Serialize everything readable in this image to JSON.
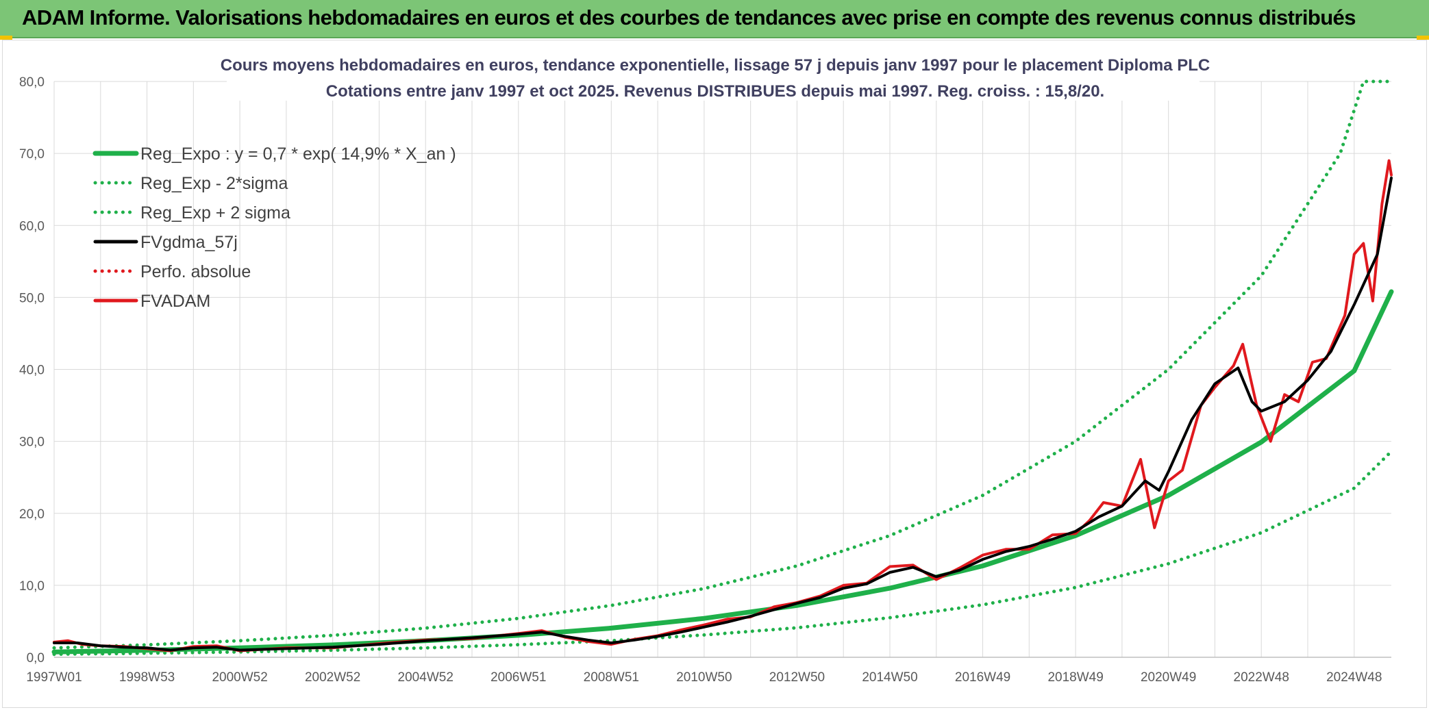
{
  "banner": {
    "title": "ADAM Informe. Valorisations hebdomadaires en euros et des courbes de tendances avec prise en compte des revenus connus distribués"
  },
  "chart_data": {
    "type": "line",
    "title": "Cours moyens hebdomadaires en euros, tendance exponentielle, lissage 57 j depuis janv 1997 pour le placement Diploma PLC",
    "subtitle": "Cotations entre janv 1997 et oct 2025. Revenus DISTRIBUES depuis mai 1997. Reg. croiss. : 15,8/20.",
    "xlabel": "",
    "ylabel": "",
    "ylim": [
      0,
      80
    ],
    "yticks": [
      "0,0",
      "10,0",
      "20,0",
      "30,0",
      "40,0",
      "50,0",
      "60,0",
      "70,0",
      "80,0"
    ],
    "xlim_years": [
      1997.0,
      2025.8
    ],
    "xticks": [
      {
        "label": "1997W01",
        "year": 1997.0
      },
      {
        "label": "1998W53",
        "year": 1999.0
      },
      {
        "label": "2000W52",
        "year": 2001.0
      },
      {
        "label": "2002W52",
        "year": 2003.0
      },
      {
        "label": "2004W52",
        "year": 2005.0
      },
      {
        "label": "2006W51",
        "year": 2007.0
      },
      {
        "label": "2008W51",
        "year": 2009.0
      },
      {
        "label": "2010W50",
        "year": 2011.0
      },
      {
        "label": "2012W50",
        "year": 2013.0
      },
      {
        "label": "2014W50",
        "year": 2015.0
      },
      {
        "label": "2016W49",
        "year": 2017.0
      },
      {
        "label": "2018W49",
        "year": 2019.0
      },
      {
        "label": "2020W49",
        "year": 2021.0
      },
      {
        "label": "2022W48",
        "year": 2023.0
      },
      {
        "label": "2024W48",
        "year": 2025.0
      }
    ],
    "grid": true,
    "legend_position": "top-left",
    "series": [
      {
        "name": "Reg_Expo : y = 0,7 * exp( 14,9% *  X_an )",
        "color": "#1fb04a",
        "style": "solid",
        "points": [
          [
            1997,
            0.74
          ],
          [
            1999,
            0.98
          ],
          [
            2001,
            1.3
          ],
          [
            2003,
            1.72
          ],
          [
            2005,
            2.3
          ],
          [
            2007,
            3.05
          ],
          [
            2009,
            4.05
          ],
          [
            2011,
            5.4
          ],
          [
            2013,
            7.2
          ],
          [
            2015,
            9.6
          ],
          [
            2017,
            12.7
          ],
          [
            2019,
            16.9
          ],
          [
            2021,
            22.5
          ],
          [
            2023,
            29.9
          ],
          [
            2025,
            39.8
          ],
          [
            2025.8,
            50.8
          ]
        ]
      },
      {
        "name": "Reg_Exp - 2*sigma",
        "color": "#1fb04a",
        "style": "dotted",
        "points": [
          [
            1997,
            0.42
          ],
          [
            1999,
            0.56
          ],
          [
            2001,
            0.74
          ],
          [
            2003,
            0.98
          ],
          [
            2005,
            1.3
          ],
          [
            2007,
            1.75
          ],
          [
            2009,
            2.3
          ],
          [
            2011,
            3.1
          ],
          [
            2013,
            4.1
          ],
          [
            2015,
            5.5
          ],
          [
            2017,
            7.3
          ],
          [
            2019,
            9.7
          ],
          [
            2021,
            13.0
          ],
          [
            2023,
            17.3
          ],
          [
            2025,
            23.5
          ],
          [
            2025.8,
            28.6
          ]
        ]
      },
      {
        "name": "Reg_Exp + 2 sigma",
        "color": "#1fb04a",
        "style": "dotted",
        "points": [
          [
            1997,
            1.3
          ],
          [
            1999,
            1.73
          ],
          [
            2001,
            2.3
          ],
          [
            2003,
            3.05
          ],
          [
            2005,
            4.05
          ],
          [
            2007,
            5.4
          ],
          [
            2009,
            7.2
          ],
          [
            2011,
            9.55
          ],
          [
            2013,
            12.7
          ],
          [
            2015,
            16.9
          ],
          [
            2017,
            22.5
          ],
          [
            2019,
            30.0
          ],
          [
            2021,
            40.0
          ],
          [
            2023,
            53.0
          ],
          [
            2024.7,
            70.0
          ],
          [
            2025.2,
            80.0
          ],
          [
            2025.8,
            80.0
          ]
        ]
      },
      {
        "name": "FVgdma_57j",
        "color": "#000000",
        "style": "solid",
        "points": [
          [
            1997,
            2.0
          ],
          [
            1997.5,
            2.0
          ],
          [
            1998,
            1.6
          ],
          [
            1998.5,
            1.4
          ],
          [
            1999,
            1.3
          ],
          [
            1999.5,
            1.0
          ],
          [
            2000,
            1.3
          ],
          [
            2000.5,
            1.4
          ],
          [
            2001,
            1.0
          ],
          [
            2002,
            1.2
          ],
          [
            2003,
            1.4
          ],
          [
            2004,
            1.8
          ],
          [
            2005,
            2.3
          ],
          [
            2006,
            2.7
          ],
          [
            2007,
            3.2
          ],
          [
            2007.5,
            3.5
          ],
          [
            2008,
            2.9
          ],
          [
            2008.5,
            2.4
          ],
          [
            2009,
            2.0
          ],
          [
            2009.5,
            2.4
          ],
          [
            2010,
            2.9
          ],
          [
            2010.5,
            3.5
          ],
          [
            2011,
            4.2
          ],
          [
            2011.5,
            4.9
          ],
          [
            2012,
            5.7
          ],
          [
            2012.5,
            6.6
          ],
          [
            2013,
            7.5
          ],
          [
            2013.5,
            8.3
          ],
          [
            2014,
            9.6
          ],
          [
            2014.5,
            10.2
          ],
          [
            2015,
            11.8
          ],
          [
            2015.5,
            12.5
          ],
          [
            2016,
            11.2
          ],
          [
            2016.5,
            12.1
          ],
          [
            2017,
            13.6
          ],
          [
            2017.5,
            14.7
          ],
          [
            2018,
            15.4
          ],
          [
            2018.5,
            16.4
          ],
          [
            2019,
            17.5
          ],
          [
            2019.5,
            19.5
          ],
          [
            2020,
            21.0
          ],
          [
            2020.5,
            24.5
          ],
          [
            2020.8,
            23.2
          ],
          [
            2021,
            25.8
          ],
          [
            2021.5,
            33.0
          ],
          [
            2022,
            38.0
          ],
          [
            2022.5,
            40.2
          ],
          [
            2022.8,
            35.5
          ],
          [
            2023,
            34.2
          ],
          [
            2023.5,
            35.5
          ],
          [
            2024,
            38.5
          ],
          [
            2024.5,
            42.5
          ],
          [
            2025,
            49.0
          ],
          [
            2025.5,
            56.0
          ],
          [
            2025.8,
            66.6
          ]
        ]
      },
      {
        "name": "Perfo. absolue",
        "color": "#e0191e",
        "style": "dotted",
        "points": []
      },
      {
        "name": "FVADAM",
        "color": "#e0191e",
        "style": "solid",
        "points": [
          [
            1997,
            2.1
          ],
          [
            1997.3,
            2.3
          ],
          [
            1997.6,
            1.8
          ],
          [
            1998,
            1.6
          ],
          [
            1998.5,
            1.5
          ],
          [
            1999,
            1.2
          ],
          [
            1999.5,
            0.9
          ],
          [
            2000,
            1.5
          ],
          [
            2000.5,
            1.6
          ],
          [
            2001,
            0.9
          ],
          [
            2002,
            1.3
          ],
          [
            2003,
            1.3
          ],
          [
            2004,
            1.9
          ],
          [
            2005,
            2.4
          ],
          [
            2006,
            2.6
          ],
          [
            2007,
            3.3
          ],
          [
            2007.5,
            3.7
          ],
          [
            2008,
            2.8
          ],
          [
            2008.5,
            2.2
          ],
          [
            2009,
            1.8
          ],
          [
            2009.5,
            2.5
          ],
          [
            2010,
            3.0
          ],
          [
            2010.5,
            3.8
          ],
          [
            2011,
            4.5
          ],
          [
            2011.5,
            5.3
          ],
          [
            2012,
            5.6
          ],
          [
            2012.5,
            7.0
          ],
          [
            2013,
            7.6
          ],
          [
            2013.5,
            8.5
          ],
          [
            2014,
            10.0
          ],
          [
            2014.5,
            10.3
          ],
          [
            2015,
            12.6
          ],
          [
            2015.5,
            12.8
          ],
          [
            2016,
            10.8
          ],
          [
            2016.5,
            12.4
          ],
          [
            2017,
            14.2
          ],
          [
            2017.5,
            15.0
          ],
          [
            2018,
            15.0
          ],
          [
            2018.5,
            17.0
          ],
          [
            2019,
            17.2
          ],
          [
            2019.3,
            19.0
          ],
          [
            2019.6,
            21.5
          ],
          [
            2020,
            21.0
          ],
          [
            2020.4,
            27.5
          ],
          [
            2020.7,
            18.0
          ],
          [
            2021,
            24.5
          ],
          [
            2021.3,
            26.0
          ],
          [
            2021.7,
            35.0
          ],
          [
            2022,
            37.5
          ],
          [
            2022.4,
            40.5
          ],
          [
            2022.6,
            43.5
          ],
          [
            2022.9,
            35.0
          ],
          [
            2023.2,
            30.0
          ],
          [
            2023.5,
            36.5
          ],
          [
            2023.8,
            35.5
          ],
          [
            2024.1,
            41.0
          ],
          [
            2024.4,
            41.5
          ],
          [
            2024.8,
            47.5
          ],
          [
            2025.0,
            56.0
          ],
          [
            2025.2,
            57.5
          ],
          [
            2025.4,
            49.5
          ],
          [
            2025.6,
            63.0
          ],
          [
            2025.75,
            69.0
          ],
          [
            2025.8,
            67.0
          ]
        ]
      }
    ]
  }
}
